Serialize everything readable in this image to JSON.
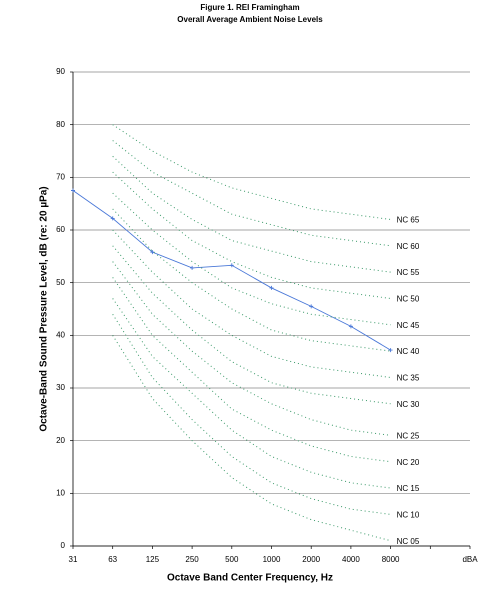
{
  "chart_data": {
    "type": "line",
    "title": "Figure 1. REI Framingham",
    "subtitle": "Overall Average Ambient Noise Levels",
    "x_label": "Octave Band Center Frequency, Hz",
    "y_label": "Octave-Band Sound Pressure Level, dB (re: 20 µPa)",
    "categories": [
      "31",
      "63",
      "125",
      "250",
      "500",
      "1000",
      "2000",
      "4000",
      "8000",
      null,
      "dBA"
    ],
    "ylim": [
      0,
      90
    ],
    "yticks": [
      0,
      10,
      20,
      30,
      40,
      50,
      60,
      70,
      80,
      90
    ],
    "grid": true,
    "series": [
      {
        "color": "#4a78d8",
        "style": "solid",
        "markers": true,
        "values": [
          67.5,
          62.2,
          55.8,
          52.8,
          53.3,
          49,
          45.5,
          41.7,
          37.2,
          null,
          null
        ]
      },
      {
        "name": "NC 65",
        "color": "#3c9a6a",
        "style": "dotted",
        "values": [
          null,
          80,
          75,
          71,
          68,
          66,
          64,
          63,
          62,
          null,
          null
        ]
      },
      {
        "name": "NC 60",
        "color": "#3c9a6a",
        "style": "dotted",
        "values": [
          null,
          77,
          71,
          67,
          63,
          61,
          59,
          58,
          57,
          null,
          null
        ]
      },
      {
        "name": "NC 55",
        "color": "#3c9a6a",
        "style": "dotted",
        "values": [
          null,
          74,
          67,
          62,
          58,
          56,
          54,
          53,
          52,
          null,
          null
        ]
      },
      {
        "name": "NC 50",
        "color": "#3c9a6a",
        "style": "dotted",
        "values": [
          null,
          71,
          64,
          58,
          54,
          51,
          49,
          48,
          47,
          null,
          null
        ]
      },
      {
        "name": "NC 45",
        "color": "#3c9a6a",
        "style": "dotted",
        "values": [
          null,
          67,
          60,
          54,
          49,
          46,
          44,
          43,
          42,
          null,
          null
        ]
      },
      {
        "name": "NC 40",
        "color": "#3c9a6a",
        "style": "dotted",
        "values": [
          null,
          64,
          56,
          50,
          45,
          41,
          39,
          38,
          37,
          null,
          null
        ]
      },
      {
        "name": "NC 35",
        "color": "#3c9a6a",
        "style": "dotted",
        "values": [
          null,
          60,
          52,
          45,
          40,
          36,
          34,
          33,
          32,
          null,
          null
        ]
      },
      {
        "name": "NC 30",
        "color": "#3c9a6a",
        "style": "dotted",
        "values": [
          null,
          57,
          48,
          41,
          35,
          31,
          29,
          28,
          27,
          null,
          null
        ]
      },
      {
        "name": "NC 25",
        "color": "#3c9a6a",
        "style": "dotted",
        "values": [
          null,
          54,
          44,
          37,
          31,
          27,
          24,
          22,
          21,
          null,
          null
        ]
      },
      {
        "name": "NC 20",
        "color": "#3c9a6a",
        "style": "dotted",
        "values": [
          null,
          51,
          40,
          33,
          26,
          22,
          19,
          17,
          16,
          null,
          null
        ]
      },
      {
        "name": "NC 15",
        "color": "#3c9a6a",
        "style": "dotted",
        "values": [
          null,
          47,
          36,
          29,
          22,
          17,
          14,
          12,
          11,
          null,
          null
        ]
      },
      {
        "name": "NC 10",
        "color": "#3c9a6a",
        "style": "dotted",
        "values": [
          null,
          44,
          32,
          24,
          17,
          12,
          9,
          7,
          6,
          null,
          null
        ]
      },
      {
        "name": "NC 05",
        "color": "#3c9a6a",
        "style": "dotted",
        "values": [
          null,
          40,
          28,
          20,
          13,
          8,
          5,
          3,
          1,
          null,
          null
        ]
      }
    ]
  }
}
